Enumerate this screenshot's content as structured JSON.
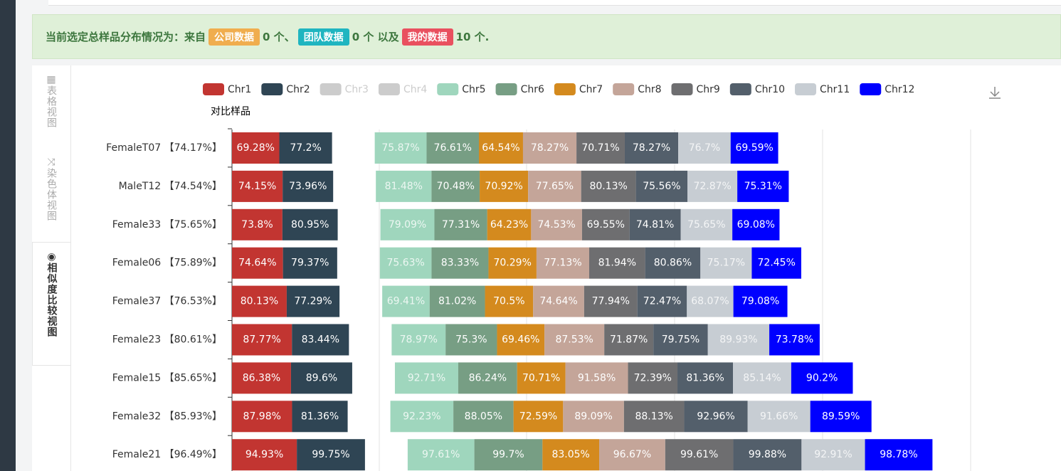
{
  "banner": {
    "prefix": "当前选定总样品分布情况为：来自",
    "badge1": "公司数据",
    "text1": "0 个、",
    "badge2": "团队数据",
    "text2": "0 个 以及",
    "badge3": "我的数据",
    "text3": "10 个."
  },
  "tabs": [
    "表格视图",
    "染色体视图",
    "相似度比较视图"
  ],
  "chart_data": {
    "type": "stacked-bar-horizontal",
    "y_label": "对比样品",
    "categories": [
      "FemaleT07 【74.17%】",
      "MaleT12 【74.54%】",
      "Female33 【75.65%】",
      "Female06 【75.89%】",
      "Female37 【76.53%】",
      "Female23 【80.61%】",
      "Female15 【85.65%】",
      "Female32 【85.93%】",
      "Female21 【96.49%】"
    ],
    "series": [
      {
        "name": "Chr1",
        "color": "#c23531",
        "values": [
          69.28,
          74.15,
          73.8,
          74.64,
          80.13,
          87.77,
          86.38,
          87.98,
          94.93
        ],
        "value_labels": [
          "69.28%",
          "74.15%",
          "73.8%",
          "74.64%",
          "80.13%",
          "87.77%",
          "86.38%",
          "87.98%",
          "94.93%"
        ]
      },
      {
        "name": "Chr2",
        "color": "#2f4554",
        "values": [
          77.2,
          73.96,
          80.95,
          79.37,
          77.29,
          83.44,
          89.6,
          81.36,
          99.75
        ],
        "value_labels": [
          "77.2%",
          "73.96%",
          "80.95%",
          "79.37%",
          "77.29%",
          "83.44%",
          "89.6%",
          "81.36%",
          "99.75%"
        ]
      },
      {
        "name": "Chr3",
        "color": "#cccccc",
        "hidden": true,
        "values": [
          null,
          null,
          null,
          null,
          null,
          null,
          null,
          null,
          null
        ]
      },
      {
        "name": "Chr4",
        "color": "#cccccc",
        "hidden": true,
        "values": [
          null,
          null,
          null,
          null,
          null,
          null,
          null,
          null,
          null
        ]
      },
      {
        "name": "Chr5",
        "color": "#9fd6bd",
        "values": [
          75.87,
          81.48,
          79.09,
          75.63,
          69.41,
          78.97,
          92.71,
          92.23,
          97.61
        ],
        "value_labels": [
          "75.87%",
          "81.48%",
          "79.09%",
          "75.63%",
          "69.41%",
          "78.97%",
          "92.71%",
          "92.23%",
          "97.61%"
        ]
      },
      {
        "name": "Chr6",
        "color": "#779e84",
        "values": [
          76.61,
          70.48,
          77.31,
          83.33,
          81.02,
          75.3,
          86.24,
          88.05,
          99.7
        ],
        "value_labels": [
          "76.61%",
          "70.48%",
          "77.31%",
          "83.33%",
          "81.02%",
          "75.3%",
          "86.24%",
          "88.05%",
          "99.7%"
        ]
      },
      {
        "name": "Chr7",
        "color": "#d48a1e",
        "values": [
          64.54,
          70.92,
          64.23,
          70.29,
          70.5,
          69.46,
          70.71,
          72.59,
          83.05
        ],
        "value_labels": [
          "64.54%",
          "70.92%",
          "64.23%",
          "70.29%",
          "70.5%",
          "69.46%",
          "70.71%",
          "72.59%",
          "83.05%"
        ]
      },
      {
        "name": "Chr8",
        "color": "#c4a599",
        "values": [
          78.27,
          77.65,
          74.53,
          77.13,
          74.64,
          87.53,
          91.58,
          89.09,
          96.67
        ],
        "value_labels": [
          "78.27%",
          "77.65%",
          "74.53%",
          "77.13%",
          "74.64%",
          "87.53%",
          "91.58%",
          "89.09%",
          "96.67%"
        ]
      },
      {
        "name": "Chr9",
        "color": "#6e6e70",
        "values": [
          70.71,
          80.13,
          69.55,
          81.94,
          77.94,
          71.87,
          72.39,
          88.13,
          99.61
        ],
        "value_labels": [
          "70.71%",
          "80.13%",
          "69.55%",
          "81.94%",
          "77.94%",
          "71.87%",
          "72.39%",
          "88.13%",
          "99.61%"
        ]
      },
      {
        "name": "Chr10",
        "color": "#535f6b",
        "values": [
          78.27,
          75.56,
          74.81,
          80.86,
          72.47,
          79.75,
          81.36,
          92.96,
          99.88
        ],
        "value_labels": [
          "78.27%",
          "75.56%",
          "74.81%",
          "80.86%",
          "72.47%",
          "79.75%",
          "81.36%",
          "92.96%",
          "99.88%"
        ]
      },
      {
        "name": "Chr11",
        "color": "#c7cdd3",
        "values": [
          76.7,
          72.87,
          75.65,
          75.17,
          68.07,
          89.93,
          85.14,
          91.66,
          92.91
        ],
        "value_labels": [
          "76.7%",
          "72.87%",
          "75.65%",
          "75.17%",
          "68.07%",
          "89.93%",
          "85.14%",
          "91.66%",
          "92.91%"
        ]
      },
      {
        "name": "Chr12",
        "color": "#0000ff",
        "values": [
          69.59,
          75.31,
          69.08,
          72.45,
          79.08,
          73.78,
          90.2,
          89.59,
          98.78
        ],
        "value_labels": [
          "69.59%",
          "75.31%",
          "69.08%",
          "72.45%",
          "79.08%",
          "73.78%",
          "90.2%",
          "89.59%",
          "98.78%"
        ]
      }
    ]
  }
}
